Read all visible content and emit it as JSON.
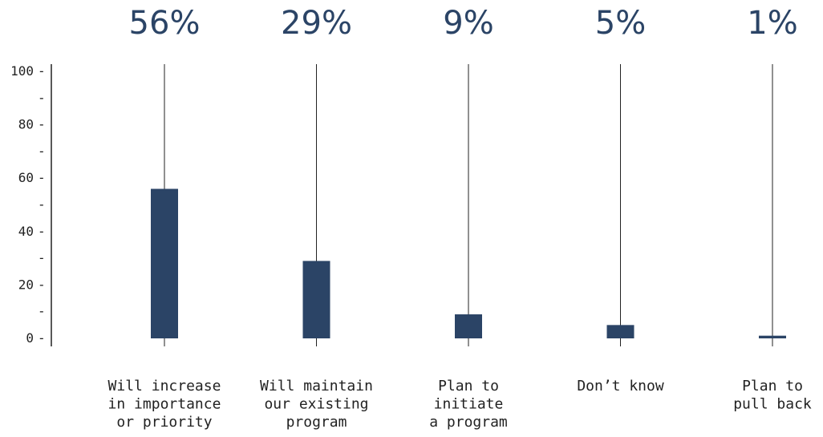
{
  "chart_data": {
    "type": "bar",
    "categories": [
      [
        "Will increase",
        "in importance",
        "or priority"
      ],
      [
        "Will maintain",
        "our existing",
        "program"
      ],
      [
        "Plan to",
        "initiate",
        "a program"
      ],
      [
        "Don’t know"
      ],
      [
        "Plan to",
        "pull back"
      ]
    ],
    "values": [
      56,
      29,
      9,
      5,
      1
    ],
    "value_labels": [
      "56%",
      "29%",
      "9%",
      "5%",
      "1%"
    ],
    "ylim": [
      0,
      100
    ],
    "yticks": [
      0,
      20,
      40,
      60,
      80,
      100
    ],
    "ytick_labels": [
      "0",
      "20",
      "40",
      "60",
      "80",
      "100"
    ],
    "minor_tick_mark": "-",
    "bar_color": "#2b4466",
    "label_color": "#2b4466",
    "grid": false,
    "legend": "none"
  }
}
